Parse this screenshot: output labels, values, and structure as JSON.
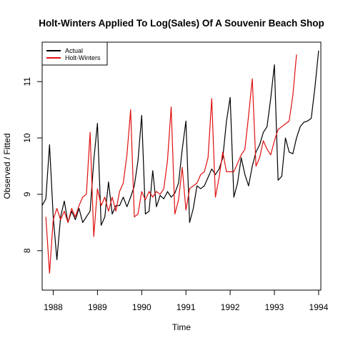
{
  "chart_data": {
    "type": "line",
    "title": "Holt-Winters Applied To Log(Sales) Of A Souvenir Beach Shop",
    "xlabel": "Time",
    "ylabel": "Observed / Fitted",
    "xlim": [
      1987.75,
      1994.05
    ],
    "ylim": [
      7.3,
      11.7
    ],
    "x_ticks": [
      1988,
      1989,
      1990,
      1991,
      1992,
      1993,
      1994
    ],
    "y_ticks": [
      8,
      9,
      10,
      11
    ],
    "grid": false,
    "legend_position": "top-left",
    "series": [
      {
        "name": "Actual",
        "color": "#000000",
        "x_start": 1987.75,
        "x_step": 0.0833333,
        "values": [
          8.8,
          8.92,
          9.88,
          8.6,
          7.84,
          8.6,
          8.88,
          8.5,
          8.7,
          8.55,
          8.75,
          8.5,
          8.6,
          8.7,
          9.6,
          10.26,
          8.45,
          8.6,
          9.22,
          8.65,
          8.8,
          8.8,
          8.95,
          8.78,
          8.95,
          9.15,
          9.6,
          10.4,
          8.65,
          8.7,
          9.42,
          8.78,
          8.98,
          8.92,
          9.05,
          8.95,
          9.02,
          9.2,
          9.8,
          10.3,
          8.5,
          8.75,
          9.15,
          9.1,
          9.15,
          9.3,
          9.45,
          9.35,
          9.45,
          9.65,
          10.3,
          10.72,
          8.95,
          9.2,
          9.65,
          9.35,
          9.15,
          9.5,
          9.75,
          9.88,
          10.1,
          10.2,
          10.7,
          11.3,
          9.25,
          9.32,
          10.0,
          9.75,
          9.72,
          10.0,
          10.2,
          10.28,
          10.3,
          10.35,
          10.9,
          11.55
        ]
      },
      {
        "name": "Holt-Winters",
        "color": "#e01010",
        "x_start": 1987.8333,
        "x_step": 0.0833333,
        "values": [
          8.6,
          7.6,
          8.55,
          8.75,
          8.55,
          8.7,
          8.5,
          8.75,
          8.6,
          8.8,
          8.95,
          9.0,
          10.1,
          8.25,
          9.1,
          8.8,
          8.95,
          8.7,
          8.95,
          8.7,
          9.05,
          9.2,
          9.7,
          10.5,
          8.6,
          8.65,
          9.05,
          8.9,
          9.05,
          8.95,
          9.05,
          9.0,
          9.1,
          9.6,
          10.55,
          8.65,
          8.9,
          9.48,
          8.72,
          9.1,
          9.15,
          9.2,
          9.35,
          9.4,
          9.65,
          10.7,
          8.95,
          9.3,
          9.75,
          9.4,
          9.4,
          9.4,
          9.55,
          9.7,
          9.8,
          10.4,
          11.05,
          9.5,
          9.65,
          9.95,
          9.8,
          9.7,
          9.95,
          10.15,
          10.2,
          10.25,
          10.3,
          10.75,
          11.48
        ]
      }
    ]
  }
}
